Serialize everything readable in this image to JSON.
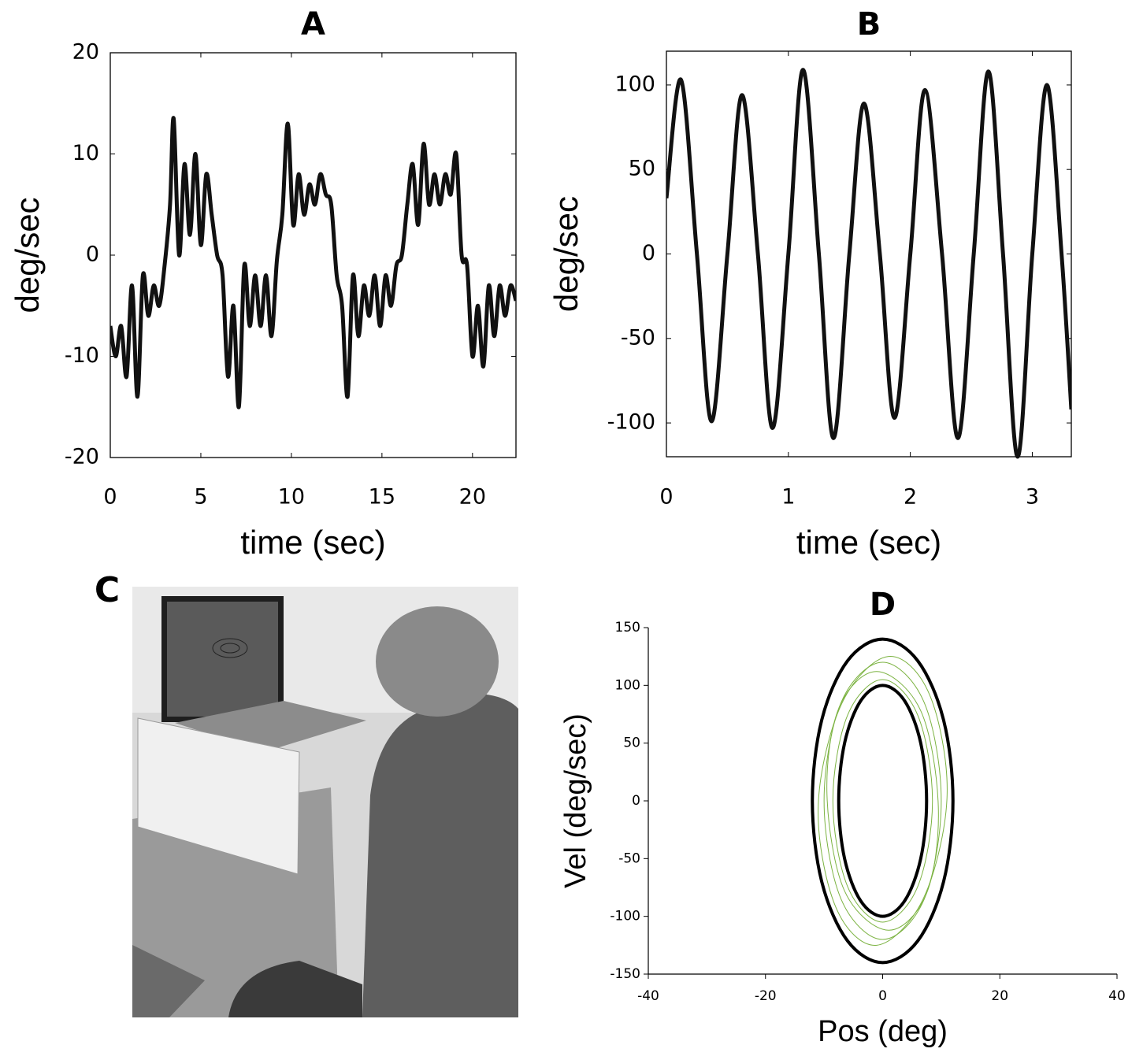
{
  "chart_data": [
    {
      "type": "line",
      "title": "A",
      "xlabel": "time (sec)",
      "ylabel": "deg/sec",
      "xlim": [
        0,
        22.4
      ],
      "ylim": [
        -20,
        20
      ],
      "xticks": [
        0,
        5,
        10,
        15,
        20
      ],
      "yticks": [
        -20,
        -10,
        0,
        10,
        20
      ],
      "series": [
        {
          "color": "#111111",
          "x": [
            0,
            0.3,
            0.6,
            0.9,
            1.2,
            1.5,
            1.8,
            2.1,
            2.4,
            2.7,
            3.0,
            3.3,
            3.5,
            3.8,
            4.1,
            4.4,
            4.7,
            5.0,
            5.3,
            5.6,
            5.9,
            6.2,
            6.5,
            6.8,
            7.1,
            7.4,
            7.7,
            8.0,
            8.3,
            8.6,
            8.9,
            9.2,
            9.5,
            9.8,
            10.1,
            10.4,
            10.7,
            11.0,
            11.3,
            11.6,
            11.9,
            12.2,
            12.5,
            12.8,
            13.1,
            13.4,
            13.7,
            14.0,
            14.3,
            14.6,
            14.9,
            15.2,
            15.5,
            15.8,
            16.1,
            16.4,
            16.7,
            17.0,
            17.3,
            17.6,
            17.9,
            18.2,
            18.5,
            18.8,
            19.1,
            19.4,
            19.7,
            20.0,
            20.3,
            20.6,
            20.9,
            21.2,
            21.5,
            21.8,
            22.1,
            22.4
          ],
          "y": [
            -7,
            -10,
            -7,
            -12,
            -3,
            -14,
            -2,
            -6,
            -3,
            -5,
            -1,
            5,
            13.5,
            0,
            9,
            2,
            10,
            1,
            8,
            4,
            0,
            -2,
            -12,
            -5,
            -15,
            -1,
            -7,
            -2,
            -7,
            -2,
            -8,
            -0.5,
            4,
            13,
            3,
            8,
            4,
            7,
            5,
            8,
            6,
            5,
            -2,
            -5,
            -14,
            -2,
            -8,
            -3,
            -6,
            -2,
            -7,
            -2,
            -5,
            -1,
            0,
            5,
            9,
            3,
            11,
            5,
            8,
            5,
            8,
            6,
            10,
            0,
            -1,
            -10,
            -5,
            -11,
            -3,
            -8,
            -3,
            -6,
            -3,
            -4.5
          ]
        }
      ]
    },
    {
      "type": "line",
      "title": "B",
      "xlabel": "time (sec)",
      "ylabel": "deg/sec",
      "xlim": [
        0,
        3.32
      ],
      "ylim": [
        -120,
        120
      ],
      "xticks": [
        0,
        1,
        2,
        3
      ],
      "yticks": [
        -100,
        -50,
        0,
        50,
        100
      ],
      "series": [
        {
          "color": "#111111",
          "x": [
            0,
            0.12,
            0.25,
            0.37,
            0.5,
            0.62,
            0.75,
            0.87,
            1.0,
            1.12,
            1.25,
            1.37,
            1.5,
            1.62,
            1.75,
            1.87,
            2.0,
            2.12,
            2.26,
            2.39,
            2.52,
            2.64,
            2.76,
            2.88,
            3.0,
            3.12,
            3.24,
            3.32
          ],
          "y": [
            33,
            103,
            0,
            -99,
            0,
            94,
            0,
            -103,
            0,
            109,
            0,
            -109,
            0,
            89,
            0,
            -97,
            0,
            97,
            0,
            -109,
            0,
            108,
            0,
            -120,
            0,
            100,
            0,
            -92
          ]
        }
      ]
    },
    {
      "type": "line",
      "title": "D",
      "xlabel": "Pos (deg)",
      "ylabel": "Vel (deg/sec)",
      "xlim": [
        -40,
        40
      ],
      "ylim": [
        -150,
        150
      ],
      "xticks": [
        -40,
        -20,
        0,
        20,
        40
      ],
      "yticks": [
        -150,
        -100,
        -50,
        0,
        50,
        100,
        150
      ],
      "series": [
        {
          "color": "#7cb342",
          "x": [
            10,
            7.1,
            0,
            -7.1,
            -10,
            -7.1,
            0,
            7.1,
            10
          ],
          "y": [
            0,
            85,
            120,
            85,
            0,
            -85,
            -120,
            -85,
            0
          ]
        },
        {
          "color": "#7cb342",
          "x": [
            8.5,
            6,
            0,
            -6,
            -8.5,
            -6,
            0,
            6,
            8.5
          ],
          "y": [
            0,
            74,
            105,
            74,
            0,
            -74,
            -105,
            -74,
            0
          ]
        },
        {
          "color": "#7cb342",
          "x": [
            11,
            8,
            1,
            -7,
            -11,
            -8,
            -1,
            7,
            11
          ],
          "y": [
            5,
            92,
            125,
            84,
            -5,
            -92,
            -125,
            -84,
            5
          ]
        },
        {
          "color": "#7cb342",
          "x": [
            9.5,
            6.5,
            -1,
            -7.5,
            -9.5,
            -6.5,
            1,
            7.5,
            9.5
          ],
          "y": [
            -5,
            78,
            112,
            80,
            5,
            -78,
            -112,
            -80,
            -5
          ]
        },
        {
          "color": "#000000",
          "x": [
            12,
            10.4,
            6,
            0,
            -6,
            -10.4,
            -12,
            -10.4,
            -6,
            0,
            6,
            10.4,
            12
          ],
          "y": [
            0,
            70,
            121.2,
            140,
            121.2,
            70,
            0,
            -70,
            -121.2,
            -140,
            -121.2,
            -70,
            0
          ]
        },
        {
          "color": "#000000",
          "x": [
            7.5,
            6.5,
            3.75,
            0,
            -3.75,
            -6.5,
            -7.5,
            -6.5,
            -3.75,
            0,
            3.75,
            6.5,
            7.5
          ],
          "y": [
            0,
            50,
            86.6,
            100,
            86.6,
            50,
            0,
            -50,
            -86.6,
            -100,
            -86.6,
            -50,
            0
          ]
        }
      ]
    }
  ]
}
